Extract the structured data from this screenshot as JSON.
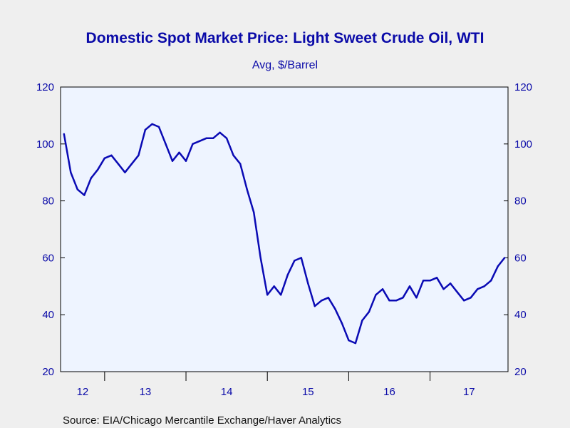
{
  "chart_data": {
    "type": "line",
    "title": "Domestic Spot Market Price: Light Sweet Crude Oil, WTI",
    "subtitle": "Avg, $/Barrel",
    "source": "Source:  EIA/Chicago Mercantile Exchange/Haver Analytics",
    "ylim": [
      20,
      120
    ],
    "y_ticks": [
      "20",
      "40",
      "60",
      "80",
      "100",
      "120"
    ],
    "x_ticks": [
      "12",
      "13",
      "14",
      "15",
      "16",
      "17"
    ],
    "xlim": [
      "2012-07",
      "2017-12"
    ],
    "grid": false,
    "colors": {
      "line": "#0a0ab4",
      "text": "#0a0aa8",
      "plot_bg": "#eef4ff",
      "page_bg": "#efefef"
    },
    "series": [
      {
        "x": [
          "2012-07",
          "2012-08",
          "2012-09",
          "2012-10",
          "2012-11",
          "2012-12",
          "2013-01",
          "2013-02",
          "2013-03",
          "2013-04",
          "2013-05",
          "2013-06",
          "2013-07",
          "2013-08",
          "2013-09",
          "2013-10",
          "2013-11",
          "2013-12",
          "2014-01",
          "2014-02",
          "2014-03",
          "2014-04",
          "2014-05",
          "2014-06",
          "2014-07",
          "2014-08",
          "2014-09",
          "2014-10",
          "2014-11",
          "2014-12",
          "2015-01",
          "2015-02",
          "2015-03",
          "2015-04",
          "2015-05",
          "2015-06",
          "2015-07",
          "2015-08",
          "2015-09",
          "2015-10",
          "2015-11",
          "2015-12",
          "2016-01",
          "2016-02",
          "2016-03",
          "2016-04",
          "2016-05",
          "2016-06",
          "2016-07",
          "2016-08",
          "2016-09",
          "2016-10",
          "2016-11",
          "2016-12",
          "2017-01",
          "2017-02",
          "2017-03",
          "2017-04",
          "2017-05",
          "2017-06",
          "2017-07",
          "2017-08",
          "2017-09",
          "2017-10",
          "2017-11",
          "2017-12"
        ],
        "values": [
          103.5,
          90,
          84,
          82,
          88,
          91,
          95,
          96,
          93,
          90,
          93,
          96,
          105,
          107,
          106,
          100,
          94,
          97,
          94,
          100,
          101,
          102,
          102,
          104,
          102,
          96,
          93,
          84,
          76,
          60,
          47,
          50,
          47,
          54,
          59,
          60,
          51,
          43,
          45,
          46,
          42,
          37,
          31,
          30,
          38,
          41,
          47,
          49,
          45,
          45,
          46,
          50,
          46,
          52,
          52,
          53,
          49,
          51,
          48,
          45,
          46,
          49,
          50,
          52,
          57,
          60
        ]
      }
    ]
  }
}
